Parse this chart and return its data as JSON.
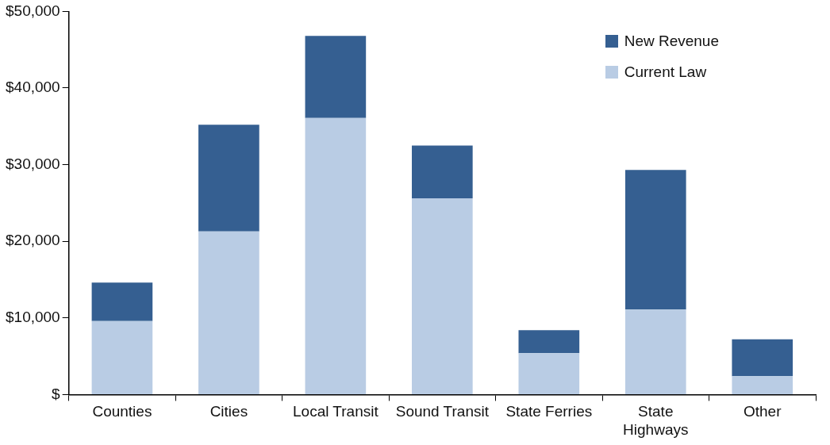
{
  "chart_data": {
    "type": "bar",
    "stacked": true,
    "categories": [
      "Counties",
      "Cities",
      "Local Transit",
      "Sound Transit",
      "State Ferries",
      "State\nHighways",
      "Other"
    ],
    "series": [
      {
        "name": "Current Law",
        "color": "#b9cce4",
        "values": [
          9600,
          21300,
          36100,
          25600,
          5400,
          11100,
          2400
        ]
      },
      {
        "name": "New Revenue",
        "color": "#355f91",
        "values": [
          5000,
          13900,
          10700,
          6900,
          3000,
          18200,
          4800
        ]
      }
    ],
    "ylim": [
      0,
      50000
    ],
    "yticks": [
      {
        "value": 0,
        "label": "$"
      },
      {
        "value": 10000,
        "label": "$10,000"
      },
      {
        "value": 20000,
        "label": "$20,000"
      },
      {
        "value": 30000,
        "label": "$30,000"
      },
      {
        "value": 40000,
        "label": "$40,000"
      },
      {
        "value": 50000,
        "label": "$50,000"
      }
    ],
    "grid": false,
    "legend": "top right"
  }
}
